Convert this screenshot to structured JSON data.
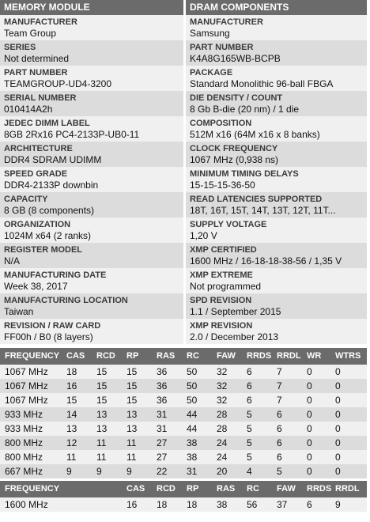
{
  "module": {
    "title": "MEMORY MODULE",
    "fields": [
      {
        "label": "MANUFACTURER",
        "value": "Team Group"
      },
      {
        "label": "SERIES",
        "value": "Not determined"
      },
      {
        "label": "PART NUMBER",
        "value": "TEAMGROUP-UD4-3200"
      },
      {
        "label": "SERIAL NUMBER",
        "value": "010414A2h"
      },
      {
        "label": "JEDEC DIMM LABEL",
        "value": "8GB 2Rx16 PC4-2133P-UB0-11"
      },
      {
        "label": "ARCHITECTURE",
        "value": "DDR4 SDRAM UDIMM"
      },
      {
        "label": "SPEED GRADE",
        "value": "DDR4-2133P downbin"
      },
      {
        "label": "CAPACITY",
        "value": "8 GB (8 components)"
      },
      {
        "label": "ORGANIZATION",
        "value": "1024M x64 (2 ranks)"
      },
      {
        "label": "REGISTER MODEL",
        "value": "N/A"
      },
      {
        "label": "MANUFACTURING DATE",
        "value": "Week 38, 2017"
      },
      {
        "label": "MANUFACTURING LOCATION",
        "value": "Taiwan"
      },
      {
        "label": "REVISION / RAW CARD",
        "value": "FF00h / B0 (8 layers)"
      }
    ]
  },
  "dram": {
    "title": "DRAM COMPONENTS",
    "fields": [
      {
        "label": "MANUFACTURER",
        "value": "Samsung"
      },
      {
        "label": "PART NUMBER",
        "value": "K4A8G165WB-BCPB"
      },
      {
        "label": "PACKAGE",
        "value": "Standard Monolithic 96-ball FBGA"
      },
      {
        "label": "DIE DENSITY / COUNT",
        "value": "8 Gb B-die (20 nm) / 1 die"
      },
      {
        "label": "COMPOSITION",
        "value": "512M x16 (64M x16 x 8 banks)"
      },
      {
        "label": "CLOCK FREQUENCY",
        "value": "1067 MHz (0,938 ns)"
      },
      {
        "label": "MINIMUM TIMING DELAYS",
        "value": "15-15-15-36-50"
      },
      {
        "label": "READ LATENCIES SUPPORTED",
        "value": "18T, 16T, 15T, 14T, 13T, 12T, 11T..."
      },
      {
        "label": "SUPPLY VOLTAGE",
        "value": "1,20 V"
      },
      {
        "label": "XMP CERTIFIED",
        "value": "1600 MHz / 16-18-18-38-56 / 1,35 V"
      },
      {
        "label": "XMP EXTREME",
        "value": "Not programmed"
      },
      {
        "label": "SPD REVISION",
        "value": "1.1 / September 2015"
      },
      {
        "label": "XMP REVISION",
        "value": "2.0 / December 2013"
      }
    ]
  },
  "jedec_timings": {
    "headers": [
      "FREQUENCY",
      "CAS",
      "RCD",
      "RP",
      "RAS",
      "RC",
      "FAW",
      "RRDS",
      "RRDL",
      "WR",
      "WTRS"
    ],
    "rows": [
      [
        "1067 MHz",
        "18",
        "15",
        "15",
        "36",
        "50",
        "32",
        "6",
        "7",
        "0",
        "0"
      ],
      [
        "1067 MHz",
        "16",
        "15",
        "15",
        "36",
        "50",
        "32",
        "6",
        "7",
        "0",
        "0"
      ],
      [
        "1067 MHz",
        "15",
        "15",
        "15",
        "36",
        "50",
        "32",
        "6",
        "7",
        "0",
        "0"
      ],
      [
        "933 MHz",
        "14",
        "13",
        "13",
        "31",
        "44",
        "28",
        "5",
        "6",
        "0",
        "0"
      ],
      [
        "933 MHz",
        "13",
        "13",
        "13",
        "31",
        "44",
        "28",
        "5",
        "6",
        "0",
        "0"
      ],
      [
        "800 MHz",
        "12",
        "11",
        "11",
        "27",
        "38",
        "24",
        "5",
        "6",
        "0",
        "0"
      ],
      [
        "800 MHz",
        "11",
        "11",
        "11",
        "27",
        "38",
        "24",
        "5",
        "6",
        "0",
        "0"
      ],
      [
        "667 MHz",
        "9",
        "9",
        "9",
        "22",
        "31",
        "20",
        "4",
        "5",
        "0",
        "0"
      ]
    ]
  },
  "xmp_timings": {
    "headers": [
      "FREQUENCY",
      "CAS",
      "RCD",
      "RP",
      "RAS",
      "RC",
      "FAW",
      "RRDS",
      "RRDL"
    ],
    "rows": [
      [
        "1600 MHz",
        "16",
        "18",
        "18",
        "38",
        "56",
        "37",
        "6",
        "9"
      ]
    ]
  }
}
